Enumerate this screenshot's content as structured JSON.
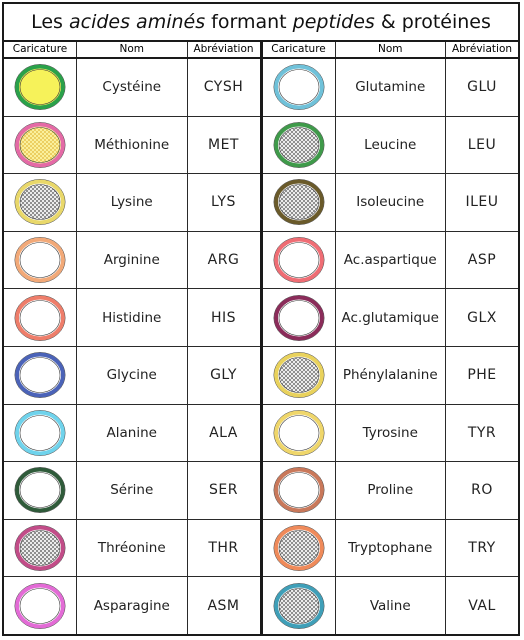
{
  "title": {
    "prefix": "Les ",
    "italic1": "acides aminés",
    "middle": " formant ",
    "italic2": "peptides",
    "suffix": " & protéines"
  },
  "headers": {
    "caricature": "Caricature",
    "nom": "Nom",
    "abbr": "Abréviation"
  },
  "left": [
    {
      "name": "Cystéine",
      "abbr": "CYSH",
      "ring": "#2aa14a",
      "fill": "#f6f25a",
      "pattern": "none"
    },
    {
      "name": "Méthionine",
      "abbr": "MET",
      "ring": "#e46aa6",
      "fill": "#fdf6a8",
      "pattern": "yellow"
    },
    {
      "name": "Lysine",
      "abbr": "LYS",
      "ring": "#e9d86a",
      "fill": "#ffffff",
      "pattern": "dark"
    },
    {
      "name": "Arginine",
      "abbr": "ARG",
      "ring": "#f2a978",
      "fill": "#ffffff",
      "pattern": "none"
    },
    {
      "name": "Histidine",
      "abbr": "HIS",
      "ring": "#ee7d6a",
      "fill": "#ffffff",
      "pattern": "none"
    },
    {
      "name": "Glycine",
      "abbr": "GLY",
      "ring": "#4b63b8",
      "fill": "#ffffff",
      "pattern": "none"
    },
    {
      "name": "Alanine",
      "abbr": "ALA",
      "ring": "#6fd3ec",
      "fill": "#ffffff",
      "pattern": "none"
    },
    {
      "name": "Sérine",
      "abbr": "SER",
      "ring": "#2f5b3a",
      "fill": "#ffffff",
      "pattern": "none"
    },
    {
      "name": "Thréonine",
      "abbr": "THR",
      "ring": "#c24c88",
      "fill": "#ffffff",
      "pattern": "dark"
    },
    {
      "name": "Asparagine",
      "abbr": "ASM",
      "ring": "#e36bd6",
      "fill": "#ffffff",
      "pattern": "none"
    }
  ],
  "right": [
    {
      "name": "Glutamine",
      "abbr": "GLU",
      "ring": "#6fc1d9",
      "fill": "#ffffff",
      "pattern": "none"
    },
    {
      "name": "Leucine",
      "abbr": "LEU",
      "ring": "#3f9a4a",
      "fill": "#ffffff",
      "pattern": "dark"
    },
    {
      "name": "Isoleucine",
      "abbr": "ILEU",
      "ring": "#6a5a2a",
      "fill": "#ffffff",
      "pattern": "dark"
    },
    {
      "name": "Ac.aspartique",
      "abbr": "ASP",
      "ring": "#ef6d74",
      "fill": "#ffffff",
      "pattern": "none"
    },
    {
      "name": "Ac.glutamique",
      "abbr": "GLX",
      "ring": "#8b2c5a",
      "fill": "#ffffff",
      "pattern": "none"
    },
    {
      "name": "Phénylalanine",
      "abbr": "PHE",
      "ring": "#e9d25c",
      "fill": "#ffffff",
      "pattern": "dark"
    },
    {
      "name": "Tyrosine",
      "abbr": "TYR",
      "ring": "#efd66a",
      "fill": "#ffffff",
      "pattern": "none"
    },
    {
      "name": "Proline",
      "abbr": "RO",
      "ring": "#c9785a",
      "fill": "#ffffff",
      "pattern": "none"
    },
    {
      "name": "Tryptophane",
      "abbr": "TRY",
      "ring": "#ef8a5a",
      "fill": "#ffffff",
      "pattern": "dark"
    },
    {
      "name": "Valine",
      "abbr": "VAL",
      "ring": "#3f9fb8",
      "fill": "#ffffff",
      "pattern": "dark"
    }
  ]
}
